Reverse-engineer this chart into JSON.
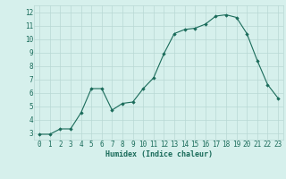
{
  "x": [
    0,
    1,
    2,
    3,
    4,
    5,
    6,
    7,
    8,
    9,
    10,
    11,
    12,
    13,
    14,
    15,
    16,
    17,
    18,
    19,
    20,
    21,
    22,
    23
  ],
  "y": [
    2.9,
    2.9,
    3.3,
    3.3,
    4.5,
    6.3,
    6.3,
    4.7,
    5.2,
    5.3,
    6.3,
    7.1,
    8.9,
    10.4,
    10.7,
    10.8,
    11.1,
    11.7,
    11.8,
    11.6,
    10.4,
    8.4,
    6.6,
    5.6
  ],
  "xlim": [
    -0.5,
    23.5
  ],
  "ylim": [
    2.5,
    12.5
  ],
  "yticks": [
    3,
    4,
    5,
    6,
    7,
    8,
    9,
    10,
    11,
    12
  ],
  "xticks": [
    0,
    1,
    2,
    3,
    4,
    5,
    6,
    7,
    8,
    9,
    10,
    11,
    12,
    13,
    14,
    15,
    16,
    17,
    18,
    19,
    20,
    21,
    22,
    23
  ],
  "xlabel": "Humidex (Indice chaleur)",
  "line_color": "#1a6b5a",
  "marker_color": "#1a6b5a",
  "bg_color": "#d6f0ec",
  "grid_color": "#b8d8d4",
  "title_color": "#1a6b5a",
  "xlabel_fontsize": 6.0,
  "tick_fontsize": 5.5
}
